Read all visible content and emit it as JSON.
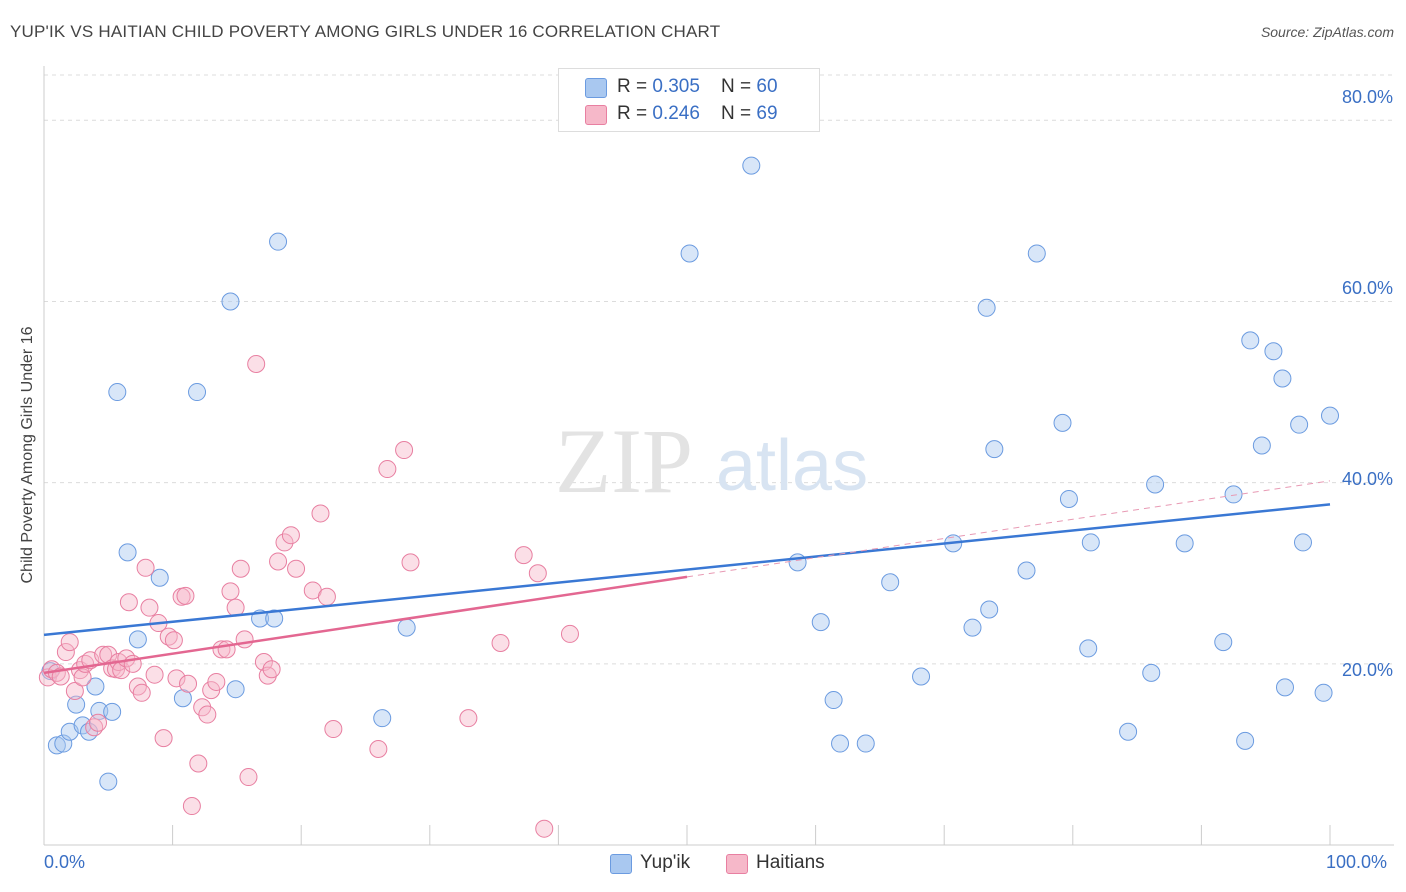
{
  "header": {
    "title": "YUP'IK VS HAITIAN CHILD POVERTY AMONG GIRLS UNDER 16 CORRELATION CHART",
    "source": "Source: ZipAtlas.com"
  },
  "watermark": {
    "zip": "ZIP",
    "atlas": "atlas"
  },
  "legend": {
    "rows": [
      {
        "r_label": "R = ",
        "r_value": "0.305",
        "n_label": "N = ",
        "n_value": "60",
        "color": "#a9c8f0"
      },
      {
        "r_label": "R = ",
        "r_value": "0.246",
        "n_label": "N = ",
        "n_value": "69",
        "color": "#f6b8c9"
      }
    ]
  },
  "bottom_legend": [
    {
      "label": "Yup'ik",
      "color": "#a9c8f0"
    },
    {
      "label": "Haitians",
      "color": "#f6b8c9"
    }
  ],
  "chart_data": {
    "type": "scatter",
    "ylabel": "Child Poverty Among Girls Under 16",
    "xlim": [
      0,
      100
    ],
    "ylim": [
      0,
      85
    ],
    "x_tick_labels": [
      "0.0%",
      "100.0%"
    ],
    "y_ticks": [
      20,
      40,
      60,
      80
    ],
    "y_tick_labels": [
      "20.0%",
      "40.0%",
      "60.0%",
      "80.0%"
    ],
    "grid": true,
    "series": [
      {
        "name": "Yup'ik",
        "color": "#a9c8f0",
        "stroke": "#6b9be0",
        "trend": {
          "x": [
            0,
            100
          ],
          "y": [
            23.2,
            37.6
          ],
          "color": "#3a78d4"
        },
        "points": [
          [
            0.5,
            19.2
          ],
          [
            1,
            11
          ],
          [
            1.5,
            11.2
          ],
          [
            2,
            12.5
          ],
          [
            2.5,
            15.5
          ],
          [
            3,
            13.2
          ],
          [
            3.5,
            12.5
          ],
          [
            4,
            17.5
          ],
          [
            4.3,
            14.8
          ],
          [
            5,
            7
          ],
          [
            5.3,
            14.7
          ],
          [
            5.7,
            50
          ],
          [
            6.5,
            32.3
          ],
          [
            7.3,
            22.7
          ],
          [
            9,
            29.5
          ],
          [
            10.8,
            16.2
          ],
          [
            11.9,
            50
          ],
          [
            14.5,
            60
          ],
          [
            14.9,
            17.2
          ],
          [
            16.8,
            25
          ],
          [
            17.9,
            25
          ],
          [
            18.2,
            66.6
          ],
          [
            26.3,
            14
          ],
          [
            28.2,
            24
          ],
          [
            50.2,
            65.3
          ],
          [
            55,
            75
          ],
          [
            58.6,
            31.2
          ],
          [
            60.4,
            24.6
          ],
          [
            61.9,
            11.2
          ],
          [
            61.4,
            16
          ],
          [
            63.9,
            11.2
          ],
          [
            65.8,
            29
          ],
          [
            68.2,
            18.6
          ],
          [
            70.7,
            33.3
          ],
          [
            72.2,
            24
          ],
          [
            73.3,
            59.3
          ],
          [
            73.5,
            26
          ],
          [
            73.9,
            43.7
          ],
          [
            76.4,
            30.3
          ],
          [
            77.2,
            65.3
          ],
          [
            79.2,
            46.6
          ],
          [
            79.7,
            38.2
          ],
          [
            81.2,
            21.7
          ],
          [
            81.4,
            33.4
          ],
          [
            84.3,
            12.5
          ],
          [
            86.1,
            19
          ],
          [
            86.4,
            39.8
          ],
          [
            88.7,
            33.3
          ],
          [
            91.7,
            22.4
          ],
          [
            92.5,
            38.7
          ],
          [
            93.4,
            11.5
          ],
          [
            93.8,
            55.7
          ],
          [
            94.7,
            44.1
          ],
          [
            95.6,
            54.5
          ],
          [
            96.5,
            17.4
          ],
          [
            96.3,
            51.5
          ],
          [
            97.6,
            46.4
          ],
          [
            97.9,
            33.4
          ],
          [
            99.5,
            16.8
          ],
          [
            100,
            47.4
          ]
        ]
      },
      {
        "name": "Haitians",
        "color": "#f6b8c9",
        "stroke": "#e87fa1",
        "trend": {
          "x": [
            0,
            50
          ],
          "y": [
            19,
            29.6
          ],
          "color": "#e36791"
        },
        "trend_ext": {
          "x": [
            50,
            100
          ],
          "y": [
            29.6,
            40.2
          ],
          "color": "#e89ab4"
        },
        "points": [
          [
            0.3,
            18.5
          ],
          [
            0.6,
            19.4
          ],
          [
            1,
            19
          ],
          [
            1.3,
            18.6
          ],
          [
            1.7,
            21.3
          ],
          [
            2,
            22.4
          ],
          [
            2.4,
            17
          ],
          [
            2.8,
            19.3
          ],
          [
            3,
            18.5
          ],
          [
            3.2,
            20
          ],
          [
            3.6,
            20.4
          ],
          [
            3.9,
            13
          ],
          [
            4.2,
            13.5
          ],
          [
            4.6,
            21
          ],
          [
            5,
            21
          ],
          [
            5.3,
            19.5
          ],
          [
            5.6,
            19.4
          ],
          [
            5.8,
            20.2
          ],
          [
            6,
            19.3
          ],
          [
            6.4,
            20.6
          ],
          [
            6.6,
            26.8
          ],
          [
            6.9,
            20
          ],
          [
            7.3,
            17.5
          ],
          [
            7.6,
            16.8
          ],
          [
            7.9,
            30.6
          ],
          [
            8.2,
            26.2
          ],
          [
            8.6,
            18.8
          ],
          [
            8.9,
            24.5
          ],
          [
            9.3,
            11.8
          ],
          [
            9.7,
            23
          ],
          [
            10.1,
            22.6
          ],
          [
            10.3,
            18.4
          ],
          [
            10.7,
            27.4
          ],
          [
            11,
            27.5
          ],
          [
            11.2,
            17.8
          ],
          [
            11.5,
            4.3
          ],
          [
            12,
            9
          ],
          [
            12.3,
            15.2
          ],
          [
            12.7,
            14.4
          ],
          [
            13,
            17.1
          ],
          [
            13.4,
            18
          ],
          [
            13.8,
            21.6
          ],
          [
            14.2,
            21.6
          ],
          [
            14.5,
            28
          ],
          [
            14.9,
            26.2
          ],
          [
            15.3,
            30.5
          ],
          [
            15.6,
            22.7
          ],
          [
            15.9,
            7.5
          ],
          [
            16.5,
            53.1
          ],
          [
            17.1,
            20.2
          ],
          [
            17.4,
            18.7
          ],
          [
            17.7,
            19.4
          ],
          [
            18.2,
            31.3
          ],
          [
            18.7,
            33.4
          ],
          [
            19.2,
            34.2
          ],
          [
            19.6,
            30.5
          ],
          [
            20.9,
            28.1
          ],
          [
            21.5,
            36.6
          ],
          [
            22,
            27.4
          ],
          [
            22.5,
            12.8
          ],
          [
            26,
            10.6
          ],
          [
            26.7,
            41.5
          ],
          [
            28,
            43.6
          ],
          [
            28.5,
            31.2
          ],
          [
            33,
            14
          ],
          [
            35.5,
            22.3
          ],
          [
            37.3,
            32
          ],
          [
            38.4,
            30
          ],
          [
            38.9,
            1.8
          ],
          [
            40.9,
            23.3
          ]
        ]
      }
    ]
  }
}
